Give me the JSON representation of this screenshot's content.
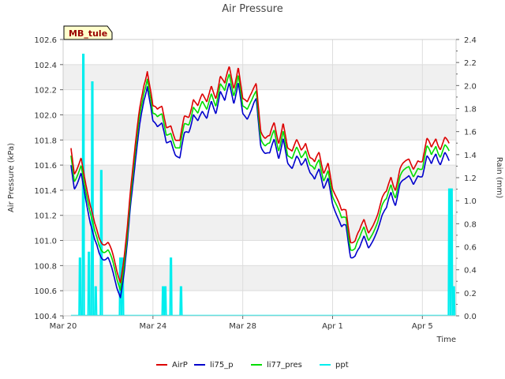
{
  "chart_data": {
    "type": "line",
    "title": "Air Pressure",
    "site_label": "MB_tule",
    "xlabel": "Time",
    "ylabel": "Air Pressure (kPa)",
    "y2label": "Rain (mm)",
    "xlim": [
      0,
      17.5
    ],
    "ylim": [
      100.4,
      102.6
    ],
    "y2lim": [
      0.0,
      2.4
    ],
    "x_ticks": [
      {
        "x": 0,
        "label": "Mar 20"
      },
      {
        "x": 4,
        "label": "Mar 24"
      },
      {
        "x": 8,
        "label": "Mar 28"
      },
      {
        "x": 12,
        "label": "Apr 1"
      },
      {
        "x": 16,
        "label": "Apr 5"
      }
    ],
    "y_ticks": [
      "100.4",
      "100.6",
      "100.8",
      "101.0",
      "101.2",
      "101.4",
      "101.6",
      "101.8",
      "102.0",
      "102.2",
      "102.4",
      "102.6"
    ],
    "y2_ticks": [
      "0.0",
      "0.2",
      "0.4",
      "0.6",
      "0.8",
      "1.0",
      "1.2",
      "1.4",
      "1.6",
      "1.8",
      "2.0",
      "2.2",
      "2.4"
    ],
    "grid": true,
    "legend_position": "bottom",
    "series": [
      {
        "name": "AirP",
        "color": "#dd0000",
        "offset": 0.06,
        "axis": "left"
      },
      {
        "name": "li75_p",
        "color": "#0000cc",
        "offset": -0.06,
        "axis": "left"
      },
      {
        "name": "li77_pres",
        "color": "#00dd00",
        "offset": 0.0,
        "axis": "left"
      },
      {
        "name": "ppt",
        "color": "#00eeee",
        "axis": "right"
      }
    ],
    "pressure_base": {
      "x": [
        0.35,
        0.5,
        0.65,
        0.8,
        1.0,
        1.2,
        1.4,
        1.6,
        1.8,
        2.0,
        2.2,
        2.4,
        2.55,
        2.7,
        2.85,
        3.0,
        3.2,
        3.4,
        3.6,
        3.75,
        3.9,
        4.0,
        4.2,
        4.4,
        4.6,
        4.8,
        5.0,
        5.2,
        5.4,
        5.6,
        5.8,
        6.0,
        6.2,
        6.4,
        6.6,
        6.8,
        7.0,
        7.2,
        7.4,
        7.6,
        7.8,
        8.0,
        8.2,
        8.4,
        8.6,
        8.8,
        9.0,
        9.2,
        9.4,
        9.6,
        9.8,
        10.0,
        10.2,
        10.4,
        10.6,
        10.8,
        11.0,
        11.2,
        11.4,
        11.6,
        11.8,
        12.0,
        12.2,
        12.4,
        12.6,
        12.8,
        13.0,
        13.2,
        13.4,
        13.6,
        13.8,
        14.0,
        14.2,
        14.4,
        14.6,
        14.8,
        15.0,
        15.2,
        15.4,
        15.6,
        15.8,
        16.0,
        16.2,
        16.4,
        16.6,
        16.8,
        17.0,
        17.2
      ],
      "values": [
        101.65,
        101.48,
        101.55,
        101.62,
        101.4,
        101.2,
        101.05,
        100.98,
        100.95,
        100.92,
        100.8,
        100.68,
        100.62,
        100.8,
        101.05,
        101.35,
        101.65,
        101.95,
        102.2,
        102.33,
        102.15,
        102.0,
        101.95,
        102.0,
        101.85,
        101.88,
        101.75,
        101.7,
        101.9,
        101.95,
        102.1,
        102.0,
        102.08,
        102.03,
        102.18,
        102.1,
        102.26,
        102.15,
        102.3,
        102.18,
        102.35,
        102.06,
        102.02,
        102.1,
        102.2,
        101.85,
        101.76,
        101.73,
        101.86,
        101.74,
        101.9,
        101.67,
        101.63,
        101.72,
        101.67,
        101.76,
        101.6,
        101.52,
        101.63,
        101.5,
        101.58,
        101.35,
        101.25,
        101.15,
        101.2,
        100.97,
        100.93,
        100.98,
        101.1,
        101.02,
        101.08,
        101.15,
        101.25,
        101.3,
        101.47,
        101.38,
        101.5,
        101.53,
        101.58,
        101.52,
        101.6,
        101.58,
        101.72,
        101.65,
        101.78,
        101.7,
        101.75,
        101.68
      ]
    },
    "ppt_events": [
      {
        "x": 0.75,
        "value": 0.5
      },
      {
        "x": 0.9,
        "value": 2.27
      },
      {
        "x": 1.15,
        "value": 0.55
      },
      {
        "x": 1.3,
        "value": 2.03
      },
      {
        "x": 1.45,
        "value": 0.25
      },
      {
        "x": 1.7,
        "value": 1.26
      },
      {
        "x": 2.55,
        "value": 0.5
      },
      {
        "x": 2.65,
        "value": 0.5
      },
      {
        "x": 4.45,
        "value": 0.25
      },
      {
        "x": 4.55,
        "value": 0.25
      },
      {
        "x": 4.8,
        "value": 0.5
      },
      {
        "x": 5.25,
        "value": 0.25
      },
      {
        "x": 17.2,
        "value": 1.1
      },
      {
        "x": 17.3,
        "value": 1.1
      },
      {
        "x": 17.4,
        "value": 0.25
      }
    ]
  }
}
